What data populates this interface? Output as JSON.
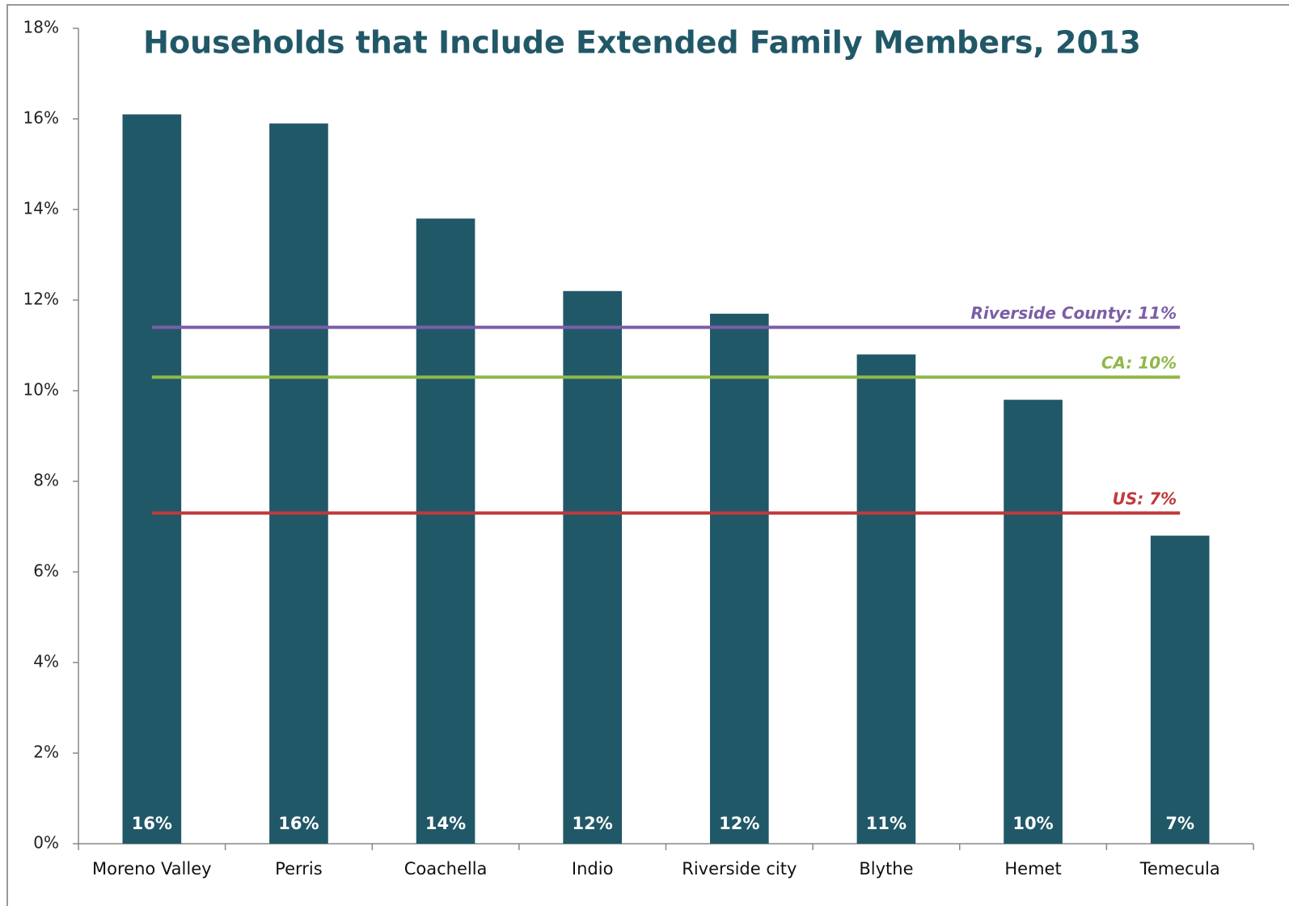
{
  "chart_data": {
    "type": "bar",
    "title": "Households that Include Extended Family Members, 2013",
    "categories": [
      "Moreno Valley",
      "Perris",
      "Coachella",
      "Indio",
      "Riverside city",
      "Blythe",
      "Hemet",
      "Temecula"
    ],
    "values": [
      16.1,
      15.9,
      13.8,
      12.2,
      11.7,
      10.8,
      9.8,
      6.8
    ],
    "value_labels": [
      "16%",
      "16%",
      "14%",
      "12%",
      "12%",
      "11%",
      "10%",
      "7%"
    ],
    "color": "#215868",
    "ylim": [
      0,
      18
    ],
    "yticks": [
      {
        "value": 0,
        "label": "0%"
      },
      {
        "value": 2,
        "label": "2%"
      },
      {
        "value": 4,
        "label": "4%"
      },
      {
        "value": 6,
        "label": "6%"
      },
      {
        "value": 8,
        "label": "8%"
      },
      {
        "value": 10,
        "label": "10%"
      },
      {
        "value": 12,
        "label": "12%"
      },
      {
        "value": 14,
        "label": "14%"
      },
      {
        "value": 16,
        "label": "16%"
      },
      {
        "value": 18,
        "label": "18%"
      }
    ],
    "reference_lines": [
      {
        "label": "Riverside County: 11%",
        "value": 11.4,
        "color": "#7b5ea7"
      },
      {
        "label": "CA: 10%",
        "value": 10.3,
        "color": "#8fb84a"
      },
      {
        "label": "US: 7%",
        "value": 7.3,
        "color": "#c0393b"
      }
    ]
  }
}
